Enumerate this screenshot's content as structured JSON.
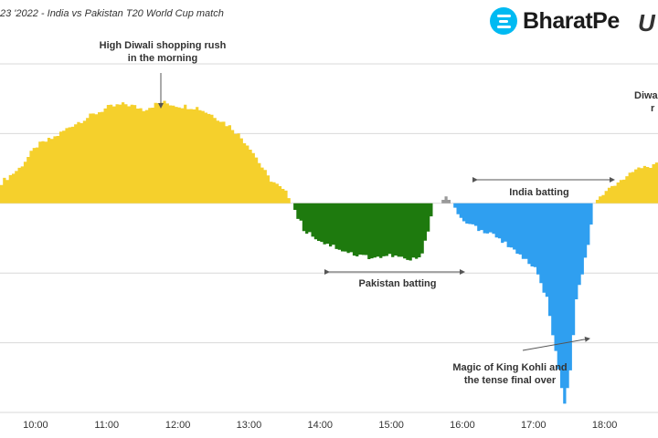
{
  "header": {
    "subtitle": "23 '2022 - India vs Pakistan T20 World Cup match",
    "brand_logo_text": "BharatPe",
    "partner_logo_text": "U"
  },
  "chart_data": {
    "type": "area",
    "title": "",
    "xlabel": "",
    "ylabel": "",
    "x_ticks": [
      "10:00",
      "11:00",
      "12:00",
      "13:00",
      "14:00",
      "15:00",
      "16:00",
      "17:00",
      "18:00"
    ],
    "xlim": [
      "09:30",
      "18:45"
    ],
    "ylim": [
      -1.2,
      0.8
    ],
    "grid": "horizontal",
    "series": [
      {
        "color": "#f5d02c",
        "x": [
          "09:30",
          "09:45",
          "10:00",
          "10:15",
          "10:30",
          "10:45",
          "11:00",
          "11:15",
          "11:30",
          "11:45",
          "12:00",
          "12:15",
          "12:30",
          "12:45",
          "13:00",
          "13:15",
          "13:30",
          "13:35"
        ],
        "y": [
          0.12,
          0.2,
          0.33,
          0.38,
          0.45,
          0.5,
          0.55,
          0.57,
          0.54,
          0.58,
          0.56,
          0.55,
          0.5,
          0.43,
          0.32,
          0.15,
          0.06,
          0.0
        ]
      },
      {
        "color": "#1e7a0e",
        "x": [
          "13:35",
          "13:45",
          "14:00",
          "14:15",
          "14:30",
          "14:45",
          "15:00",
          "15:15",
          "15:25",
          "15:35"
        ],
        "y": [
          0.0,
          -0.15,
          -0.22,
          -0.26,
          -0.3,
          -0.31,
          -0.3,
          -0.33,
          -0.3,
          0.0
        ]
      },
      {
        "color": "#999999",
        "x": [
          "15:40",
          "15:45",
          "15:50"
        ],
        "y": [
          0.0,
          0.04,
          0.0
        ]
      },
      {
        "color": "#2f9ff0",
        "x": [
          "15:50",
          "16:00",
          "16:15",
          "16:30",
          "16:45",
          "17:00",
          "17:10",
          "17:20",
          "17:25",
          "17:30",
          "17:35",
          "17:45",
          "17:50"
        ],
        "y": [
          0.0,
          -0.1,
          -0.16,
          -0.2,
          -0.28,
          -0.38,
          -0.55,
          -0.95,
          -1.15,
          -0.95,
          -0.55,
          -0.25,
          0.0
        ]
      },
      {
        "color": "#f5d02c",
        "x": [
          "17:50",
          "18:00",
          "18:15",
          "18:30",
          "18:45"
        ],
        "y": [
          0.0,
          0.08,
          0.15,
          0.2,
          0.23
        ]
      }
    ],
    "annotations": [
      {
        "id": "diwali_morning",
        "text": [
          "High Diwali shopping rush",
          "in the morning"
        ]
      },
      {
        "id": "pakistan_batting",
        "text": [
          "Pakistan batting"
        ]
      },
      {
        "id": "india_batting",
        "text": [
          "India batting"
        ]
      },
      {
        "id": "kohli",
        "text": [
          "Magic of King Kohli and",
          "the tense final over"
        ]
      },
      {
        "id": "diwali_evening",
        "text": [
          "Diwa",
          "r"
        ]
      }
    ]
  }
}
